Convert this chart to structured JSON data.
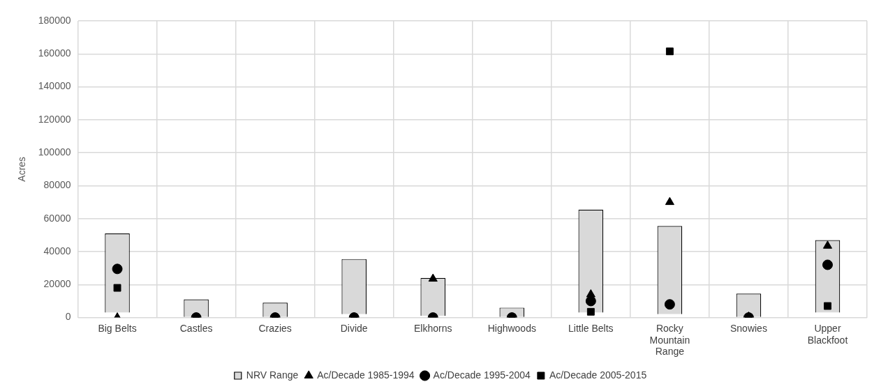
{
  "chart_data": {
    "type": "bar",
    "ylabel": "Acres",
    "categories": [
      "Big Belts",
      "Castles",
      "Crazies",
      "Divide",
      "Elkhorns",
      "Highwoods",
      "Little Belts",
      "Rocky Mountain Range",
      "Snowies",
      "Upper Blackfoot"
    ],
    "ylim": [
      0,
      180000
    ],
    "yticks": [
      0,
      20000,
      40000,
      60000,
      80000,
      100000,
      120000,
      140000,
      160000,
      180000
    ],
    "grid": true,
    "legend": "bottom",
    "series": [
      {
        "name": "NRV Range",
        "color": "#d9d9d9",
        "base": [
          3000,
          0,
          0,
          2000,
          1000,
          0,
          3000,
          2000,
          0,
          3000
        ],
        "values": [
          48000,
          11000,
          9000,
          33500,
          23000,
          6000,
          62500,
          53500,
          14500,
          44000
        ]
      },
      {
        "name": "Ac/Decade 1985-1994",
        "type": "scatter",
        "marker": "triangle",
        "color": "#000000",
        "values": [
          0,
          0,
          0,
          0,
          23500,
          0,
          14000,
          70000,
          500,
          43500
        ]
      },
      {
        "name": "Ac/Decade 1995-2004",
        "type": "scatter",
        "marker": "circle",
        "color": "#000000",
        "values": [
          29500,
          0,
          0,
          0,
          0,
          0,
          10000,
          8000,
          0,
          32000
        ]
      },
      {
        "name": "Ac/Decade 2005-2015",
        "type": "scatter",
        "marker": "square",
        "color": "#000000",
        "values": [
          18000,
          0,
          0,
          0,
          0,
          0,
          3500,
          161500,
          0,
          7000
        ]
      }
    ]
  }
}
